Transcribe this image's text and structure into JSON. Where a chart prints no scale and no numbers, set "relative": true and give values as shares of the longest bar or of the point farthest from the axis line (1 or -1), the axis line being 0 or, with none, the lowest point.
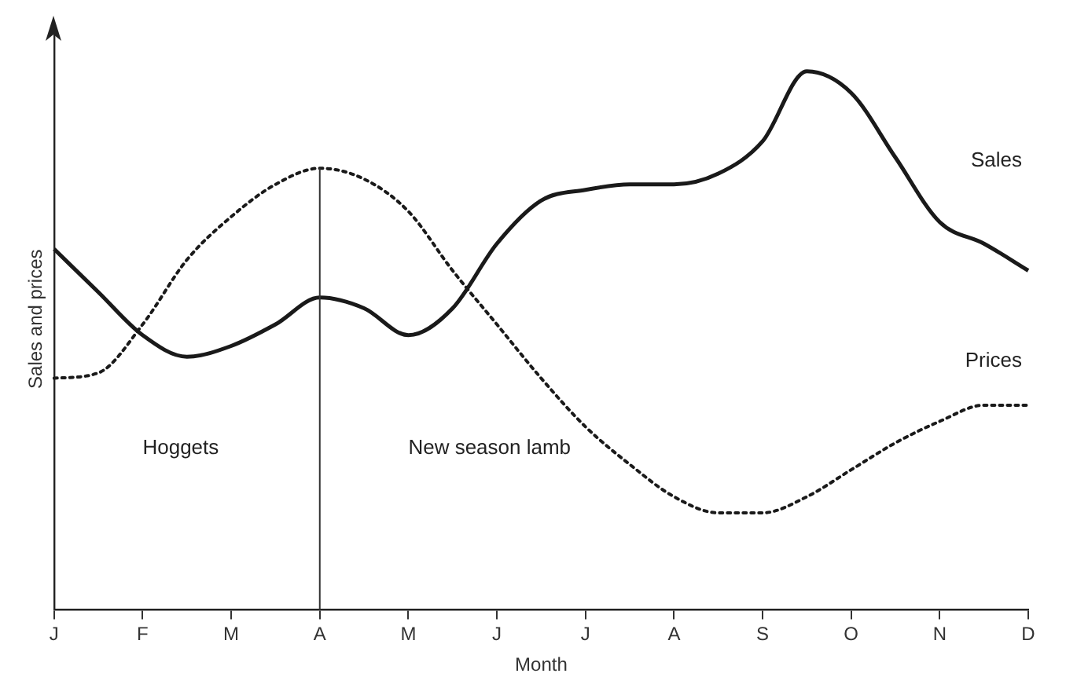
{
  "chart_data": {
    "type": "line",
    "relative": true,
    "xlabel": "Month",
    "ylabel": "Sales and prices",
    "categories": [
      "J",
      null,
      "F",
      null,
      "M",
      null,
      "A",
      null,
      "M",
      null,
      "J",
      null,
      "J",
      null,
      "A",
      null,
      "S",
      null,
      "O",
      null,
      "N",
      null,
      "D"
    ],
    "legend": false,
    "marker": "none",
    "series": [
      {
        "name": "Sales",
        "color": "#1a1a1a",
        "line_style": "solid",
        "values": [
          0.67,
          0.59,
          0.51,
          0.47,
          0.49,
          0.53,
          0.58,
          0.56,
          0.51,
          0.56,
          0.68,
          0.76,
          0.78,
          0.79,
          0.79,
          0.81,
          0.87,
          1,
          0.96,
          0.84,
          0.72,
          0.68,
          0.63
        ]
      },
      {
        "name": "Prices",
        "color": "#1a1a1a",
        "line_style": "dotted",
        "values": [
          0.43,
          0.44,
          0.53,
          0.65,
          0.73,
          0.79,
          0.82,
          0.8,
          0.74,
          0.63,
          0.53,
          0.43,
          0.34,
          0.27,
          0.21,
          0.18,
          0.18,
          0.21,
          0.26,
          0.31,
          0.35,
          0.38,
          0.38
        ]
      }
    ],
    "ref_lines": [
      {
        "axis": "x",
        "value": "A",
        "color": "#333333"
      }
    ],
    "annotations": [
      "Hoggets",
      "New season lamb"
    ]
  }
}
